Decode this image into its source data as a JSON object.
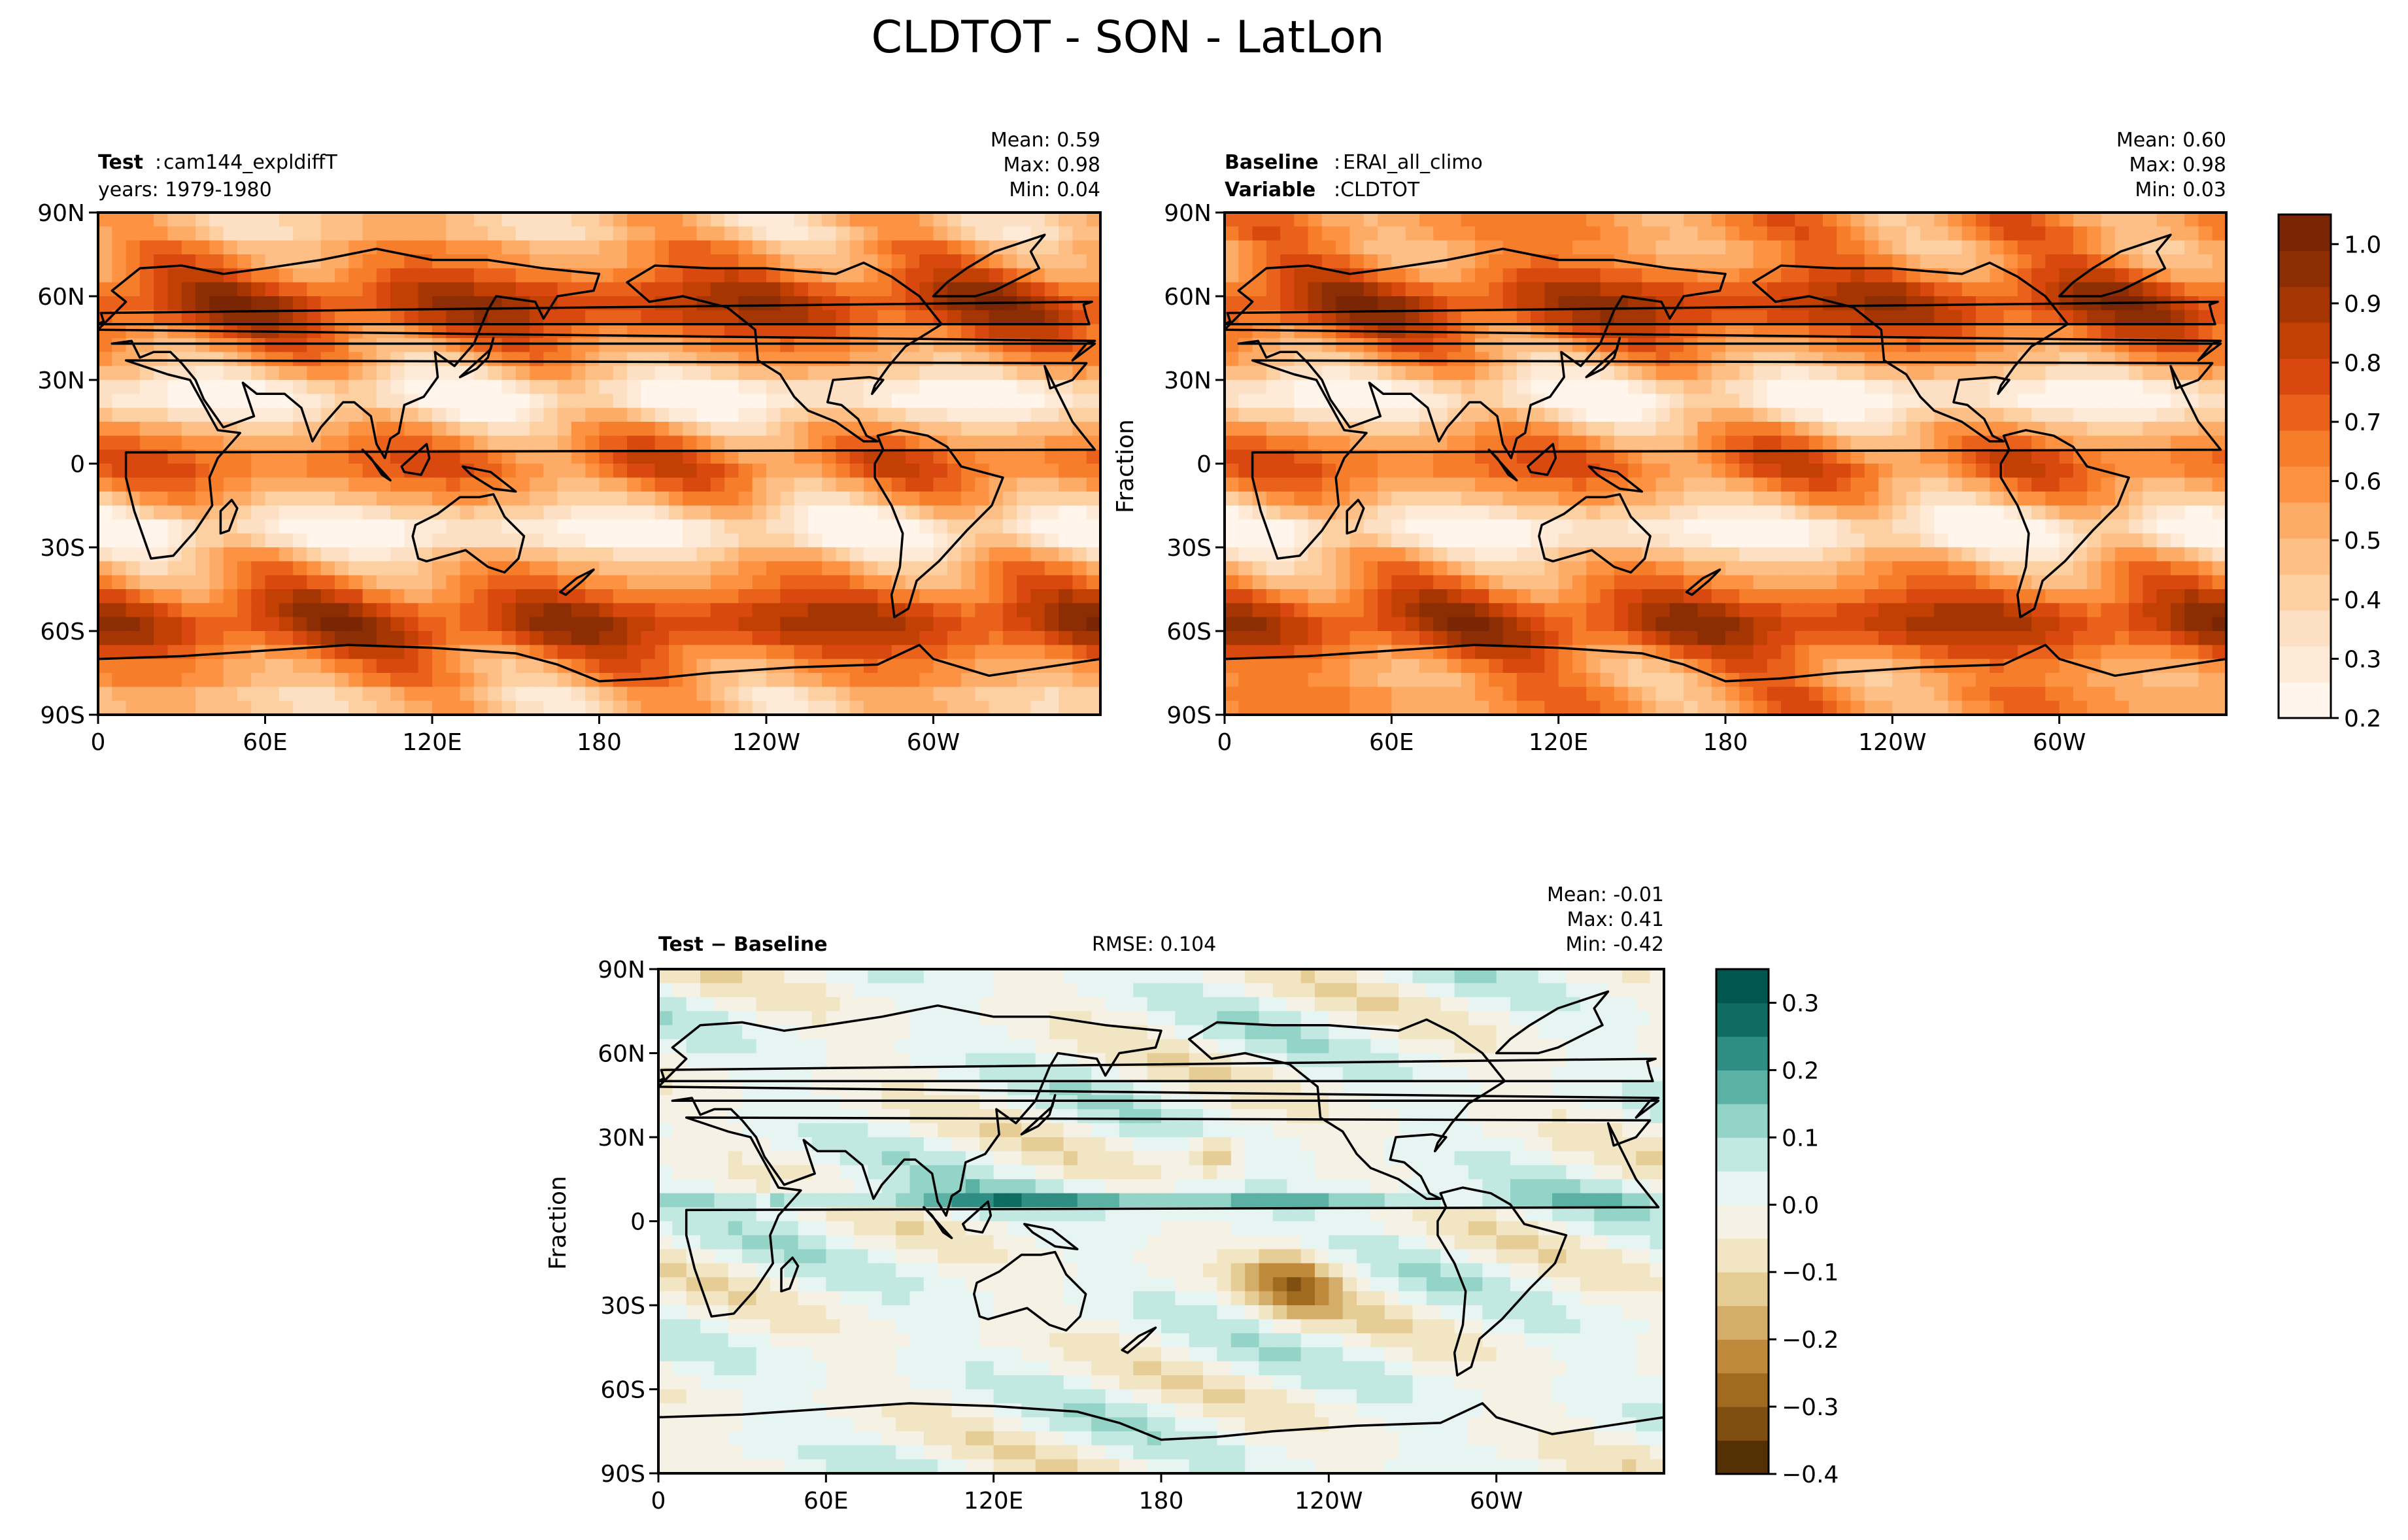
{
  "figure_title": "CLDTOT - SON - LatLon",
  "chart_data": [
    {
      "type": "heatmap",
      "panel": "test",
      "label_bold": "Test",
      "label_sep": ":",
      "label_text": "cam144_expldiffT",
      "line2_bold": "",
      "line2_text": "years: 1979-1980",
      "stats": {
        "mean": "Mean:  0.59",
        "max": "Max:  0.98",
        "min": "Min:  0.04"
      },
      "ylabel": "",
      "lat_ticks": [
        "90N",
        "60N",
        "30N",
        "0",
        "30S",
        "60S",
        "90S"
      ],
      "lon_ticks": [
        "0",
        "60E",
        "120E",
        "180",
        "120W",
        "60W"
      ],
      "xlim_deg_east": [
        0,
        360
      ],
      "ylim_deg": [
        -90,
        90
      ],
      "summary": {
        "mean": 0.59,
        "max": 0.98,
        "min": 0.04
      },
      "colormap": "Oranges"
    },
    {
      "type": "heatmap",
      "panel": "baseline",
      "label_bold": "Baseline",
      "label_sep": ":",
      "label_text": "ERAI_all_climo",
      "line2_bold": "Variable",
      "line2_text": ":CLDTOT",
      "stats": {
        "mean": "Mean:  0.60",
        "max": "Max:  0.98",
        "min": "Min:  0.03"
      },
      "ylabel": "Fraction",
      "lat_ticks": [
        "90N",
        "60N",
        "30N",
        "0",
        "30S",
        "60S",
        "90S"
      ],
      "lon_ticks": [
        "0",
        "60E",
        "120E",
        "180",
        "120W",
        "60W"
      ],
      "xlim_deg_east": [
        0,
        360
      ],
      "ylim_deg": [
        -90,
        90
      ],
      "summary": {
        "mean": 0.6,
        "max": 0.98,
        "min": 0.03
      },
      "colormap": "Oranges"
    },
    {
      "type": "heatmap",
      "panel": "difference",
      "label_bold": "Test − Baseline",
      "label_sep": "",
      "label_text": "",
      "line2_bold": "",
      "line2_text": "",
      "rmse": "RMSE: 0.104",
      "stats": {
        "mean": "Mean: -0.01",
        "max": "Max:  0.41",
        "min": "Min: -0.42"
      },
      "ylabel": "Fraction",
      "lat_ticks": [
        "90N",
        "60N",
        "30N",
        "0",
        "30S",
        "60S",
        "90S"
      ],
      "lon_ticks": [
        "0",
        "60E",
        "120E",
        "180",
        "120W",
        "60W"
      ],
      "xlim_deg_east": [
        0,
        360
      ],
      "ylim_deg": [
        -90,
        90
      ],
      "summary": {
        "mean": -0.01,
        "max": 0.41,
        "min": -0.42,
        "rmse": 0.104
      },
      "colormap": "BrBG"
    }
  ],
  "colorbars": {
    "main": {
      "range": [
        0.2,
        1.05
      ],
      "tick_values": [
        0.2,
        0.3,
        0.4,
        0.5,
        0.6,
        0.7,
        0.8,
        0.9,
        1.0
      ],
      "tick_labels": [
        "0.2",
        "0.3",
        "0.4",
        "0.5",
        "0.6",
        "0.7",
        "0.8",
        "0.9",
        "1.0"
      ],
      "colors": [
        "#fff5eb",
        "#feead6",
        "#fde0c3",
        "#fdd0a2",
        "#fdbf86",
        "#fdac67",
        "#fd9243",
        "#f67d2a",
        "#e9611a",
        "#d9480f",
        "#c24003",
        "#a53603",
        "#8c2d04",
        "#7a2503"
      ]
    },
    "diff": {
      "range": [
        -0.4,
        0.35
      ],
      "tick_values": [
        0.3,
        0.2,
        0.1,
        0.0,
        -0.1,
        -0.2,
        -0.3,
        -0.4
      ],
      "tick_labels": [
        "0.3",
        "0.2",
        "0.1",
        "0.0",
        "−0.1",
        "−0.2",
        "−0.3",
        "−0.4"
      ],
      "colors": [
        "#543005",
        "#7f4f12",
        "#a06a1f",
        "#bf8a3c",
        "#d5ad6a",
        "#e6cc95",
        "#f2e5c3",
        "#f5f1e4",
        "#e6f4f2",
        "#c2e8e2",
        "#93d3c8",
        "#5cb1a5",
        "#2f8e84",
        "#0e6c62",
        "#01574f"
      ]
    }
  }
}
